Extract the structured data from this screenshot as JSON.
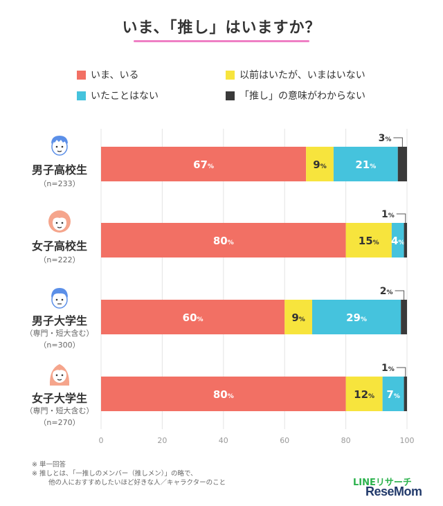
{
  "title": "いま、「推し」はいますか？",
  "colors": {
    "current": "#f27064",
    "former": "#f7e43d",
    "never": "#45c3dd",
    "unknown": "#3a3a3a",
    "underline": "#ef7fc4",
    "grid": "#e3e3e3",
    "axis_text": "#999999"
  },
  "legend": [
    {
      "label": "いま、いる",
      "color_key": "current"
    },
    {
      "label": "以前はいたが、いまはいない",
      "color_key": "former"
    },
    {
      "label": "いたことはない",
      "color_key": "never"
    },
    {
      "label": "「推し」の意味がわからない",
      "color_key": "unknown"
    }
  ],
  "groups": [
    {
      "name": "男子高校生",
      "sub": "",
      "n": "（n=233）",
      "icon": "boy-highschool-icon"
    },
    {
      "name": "女子高校生",
      "sub": "",
      "n": "（n=222）",
      "icon": "girl-highschool-icon"
    },
    {
      "name": "男子大学生",
      "sub": "（専門・短大含む）",
      "n": "（n=300）",
      "icon": "boy-university-icon"
    },
    {
      "name": "女子大学生",
      "sub": "（専門・短大含む）",
      "n": "（n=270）",
      "icon": "girl-university-icon"
    }
  ],
  "chart_data": {
    "type": "bar",
    "orientation": "horizontal",
    "stacked": true,
    "title": "いま、「推し」はいますか？",
    "categories": [
      "男子高校生",
      "女子高校生",
      "男子大学生",
      "女子大学生"
    ],
    "series": [
      {
        "name": "いま、いる",
        "values": [
          67,
          80,
          60,
          80
        ]
      },
      {
        "name": "以前はいたが、いまはいない",
        "values": [
          9,
          15,
          9,
          12
        ]
      },
      {
        "name": "いたことはない",
        "values": [
          21,
          4,
          29,
          7
        ]
      },
      {
        "name": "「推し」の意味がわからない",
        "values": [
          3,
          1,
          2,
          1
        ]
      }
    ],
    "xlim": [
      0,
      100
    ],
    "xticks": [
      0,
      20,
      40,
      60,
      80,
      100
    ],
    "unit": "%",
    "grid": true
  },
  "footnotes": [
    "※ 単一回答",
    "※ 推しとは、「一推しのメンバー（推しメン）」の略で、",
    "他の人におすすめしたいほど好きな人／キャラクターのこと"
  ],
  "brand": {
    "line": "LINEリサーチ",
    "resemom": "ReseMom"
  }
}
